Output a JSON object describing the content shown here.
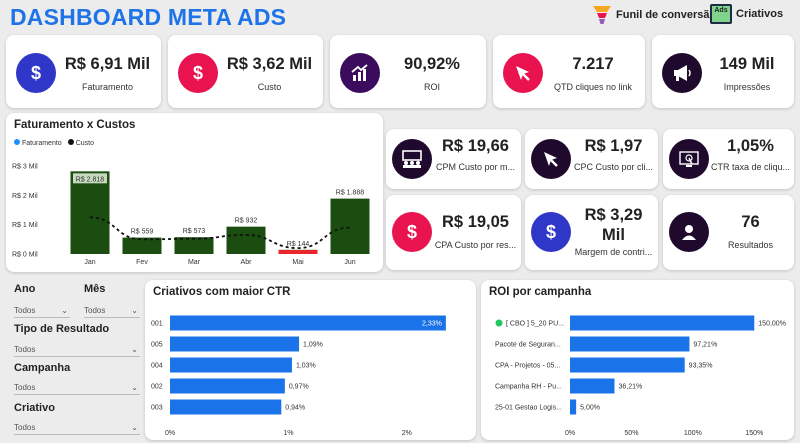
{
  "title": "DASHBOARD META ADS",
  "nav": {
    "funnel_label": "Funil de conversão",
    "creatives_label": "Criativos",
    "creatives_icon_text": "Ads"
  },
  "kpis_top": [
    {
      "value": "R$ 6,91 Mil",
      "label": "Faturamento",
      "icon": "dollar-icon",
      "color": "#2f37c8"
    },
    {
      "value": "R$ 3,62 Mil",
      "label": "Custo",
      "icon": "dollar-icon",
      "color": "#e8134f"
    },
    {
      "value": "90,92%",
      "label": "ROI",
      "icon": "growth-chart-icon",
      "color": "#3b0b5e"
    },
    {
      "value": "7.217",
      "label": "QTD cliques no link",
      "icon": "cursor-icon",
      "color": "#e8134f"
    },
    {
      "value": "149 Mil",
      "label": "Impressões",
      "icon": "megaphone-icon",
      "color": "#1f0a2e"
    }
  ],
  "kpis_side": [
    {
      "value": "R$ 19,66",
      "label": "CPM Custo por m...",
      "icon": "audience-icon",
      "color": "#1f0a2e"
    },
    {
      "value": "R$ 1,97",
      "label": "CPC Custo por cli...",
      "icon": "cursor-icon",
      "color": "#1f0a2e"
    },
    {
      "value": "1,05%",
      "label": "CTR taxa de cliqu...",
      "icon": "click-screen-icon",
      "color": "#1f0a2e"
    },
    {
      "value": "R$ 19,05",
      "label": "CPA Custo por res...",
      "icon": "dollar-icon",
      "color": "#e8134f"
    },
    {
      "value": "R$ 3,29 Mil",
      "label": "Margem de contri...",
      "icon": "dollar-icon",
      "color": "#2f37c8"
    },
    {
      "value": "76",
      "label": "Resultados",
      "icon": "user-icon",
      "color": "#1f0a2e"
    }
  ],
  "revenue_chart": {
    "title": "Faturamento x Custos",
    "legend": [
      "Faturamento",
      "Custo"
    ],
    "chart_data": {
      "type": "bar",
      "categories": [
        "Jan",
        "Fev",
        "Mar",
        "Abr",
        "Mai",
        "Jun"
      ],
      "series": [
        {
          "name": "Faturamento",
          "values": [
            2818,
            559,
            573,
            932,
            144,
            1888
          ],
          "labels": [
            "R$ 2.818",
            "R$ 559",
            "R$ 573",
            "R$ 932",
            "R$ 144",
            "R$ 1.888"
          ]
        },
        {
          "name": "Custo",
          "values": [
            1250,
            500,
            520,
            650,
            200,
            900
          ]
        }
      ],
      "ylim": [
        0,
        3000
      ],
      "yticks": [
        "R$ 0 Mil",
        "R$ 1 Mil",
        "R$ 2 Mil",
        "R$ 3 Mil"
      ]
    }
  },
  "filters": [
    {
      "label": "Ano",
      "value": "Todos"
    },
    {
      "label": "Mês",
      "value": "Todos"
    },
    {
      "label": "Tipo de Resultado",
      "value": "Todos"
    },
    {
      "label": "Campanha",
      "value": "Todos"
    },
    {
      "label": "Criativo",
      "value": "Todos"
    }
  ],
  "ctr_chart": {
    "title": "Criativos com maior CTR",
    "chart_data": {
      "type": "bar",
      "categories": [
        "001",
        "005",
        "004",
        "002",
        "003"
      ],
      "values": [
        2.33,
        1.09,
        1.03,
        0.97,
        0.94
      ],
      "labels": [
        "2,33%",
        "1,09%",
        "1,03%",
        "0,97%",
        "0,94%"
      ],
      "xticks": [
        "0%",
        "1%",
        "2%"
      ],
      "xlim": [
        0,
        2.5
      ]
    }
  },
  "roi_chart": {
    "title": "ROI por campanha",
    "chart_data": {
      "type": "bar",
      "categories": [
        "[ CBO ] 5_20 PU...",
        "Pacote de Seguran...",
        "CPA - Projetos - 05...",
        "Campanha RH - Pu...",
        "25-01 Gestao Logis..."
      ],
      "values": [
        150.0,
        97.21,
        93.35,
        36.21,
        5.0
      ],
      "labels": [
        "150,00%",
        "97,21%",
        "93,35%",
        "36,21%",
        "5,00%"
      ],
      "xticks": [
        "0%",
        "50%",
        "100%",
        "150%"
      ],
      "xlim": [
        0,
        175
      ]
    }
  }
}
